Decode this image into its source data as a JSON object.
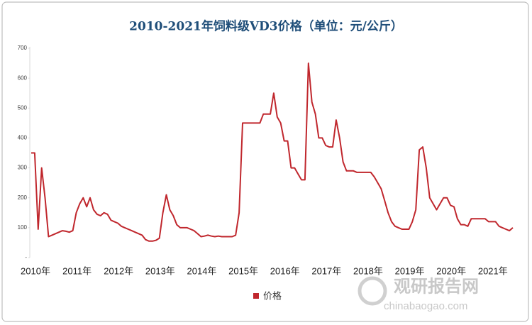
{
  "chart_data": {
    "type": "line",
    "title": "2010-2021年饲料级VD3价格（单位：元/公斤）",
    "categories": [
      "2010年",
      null,
      null,
      null,
      null,
      null,
      null,
      null,
      null,
      null,
      null,
      null,
      "2011年",
      null,
      null,
      null,
      null,
      null,
      null,
      null,
      null,
      null,
      null,
      null,
      "2012年",
      null,
      null,
      null,
      null,
      null,
      null,
      null,
      null,
      null,
      null,
      null,
      "2013年",
      null,
      null,
      null,
      null,
      null,
      null,
      null,
      null,
      null,
      null,
      null,
      "2014年",
      null,
      null,
      null,
      null,
      null,
      null,
      null,
      null,
      null,
      null,
      null,
      "2015年",
      null,
      null,
      null,
      null,
      null,
      null,
      null,
      null,
      null,
      null,
      null,
      "2016年",
      null,
      null,
      null,
      null,
      null,
      null,
      null,
      null,
      null,
      null,
      null,
      "2017年",
      null,
      null,
      null,
      null,
      null,
      null,
      null,
      null,
      null,
      null,
      null,
      "2018年",
      null,
      null,
      null,
      null,
      null,
      null,
      null,
      null,
      null,
      null,
      null,
      "2019年",
      null,
      null,
      null,
      null,
      null,
      null,
      null,
      null,
      null,
      null,
      null,
      "2020年",
      null,
      null,
      null,
      null,
      null,
      null,
      null,
      null,
      null,
      null,
      null,
      "2021年",
      null,
      null,
      null,
      null,
      null,
      null,
      null
    ],
    "series": [
      {
        "name": "价格",
        "color": "#c0272d",
        "values": [
          350,
          350,
          95,
          300,
          200,
          70,
          75,
          80,
          85,
          90,
          88,
          85,
          90,
          150,
          180,
          200,
          170,
          200,
          160,
          145,
          140,
          150,
          145,
          125,
          120,
          115,
          105,
          100,
          95,
          90,
          85,
          80,
          75,
          60,
          55,
          55,
          58,
          65,
          150,
          210,
          160,
          140,
          110,
          100,
          100,
          100,
          95,
          90,
          80,
          70,
          72,
          75,
          72,
          70,
          72,
          70,
          70,
          70,
          70,
          75,
          150,
          450,
          450,
          450,
          450,
          450,
          450,
          480,
          480,
          480,
          550,
          470,
          450,
          390,
          390,
          300,
          300,
          280,
          260,
          260,
          650,
          520,
          480,
          400,
          400,
          375,
          370,
          370,
          460,
          400,
          320,
          290,
          290,
          290,
          285,
          285,
          285,
          285,
          285,
          270,
          250,
          230,
          190,
          150,
          120,
          105,
          100,
          95,
          95,
          95,
          120,
          160,
          360,
          370,
          300,
          200,
          180,
          160,
          180,
          200,
          200,
          175,
          170,
          130,
          110,
          110,
          105,
          130,
          130,
          130,
          130,
          130,
          120,
          120,
          120,
          105,
          100,
          95,
          90,
          100
        ]
      }
    ],
    "ylim": [
      0,
      700
    ],
    "yticks": [
      {
        "value": 0,
        "label": "-"
      },
      100,
      200,
      300,
      400,
      500,
      600,
      700
    ],
    "grid": false,
    "legend": "bottom"
  },
  "watermark": {
    "name": "观研报告网",
    "url": "chinabaogao.com"
  }
}
